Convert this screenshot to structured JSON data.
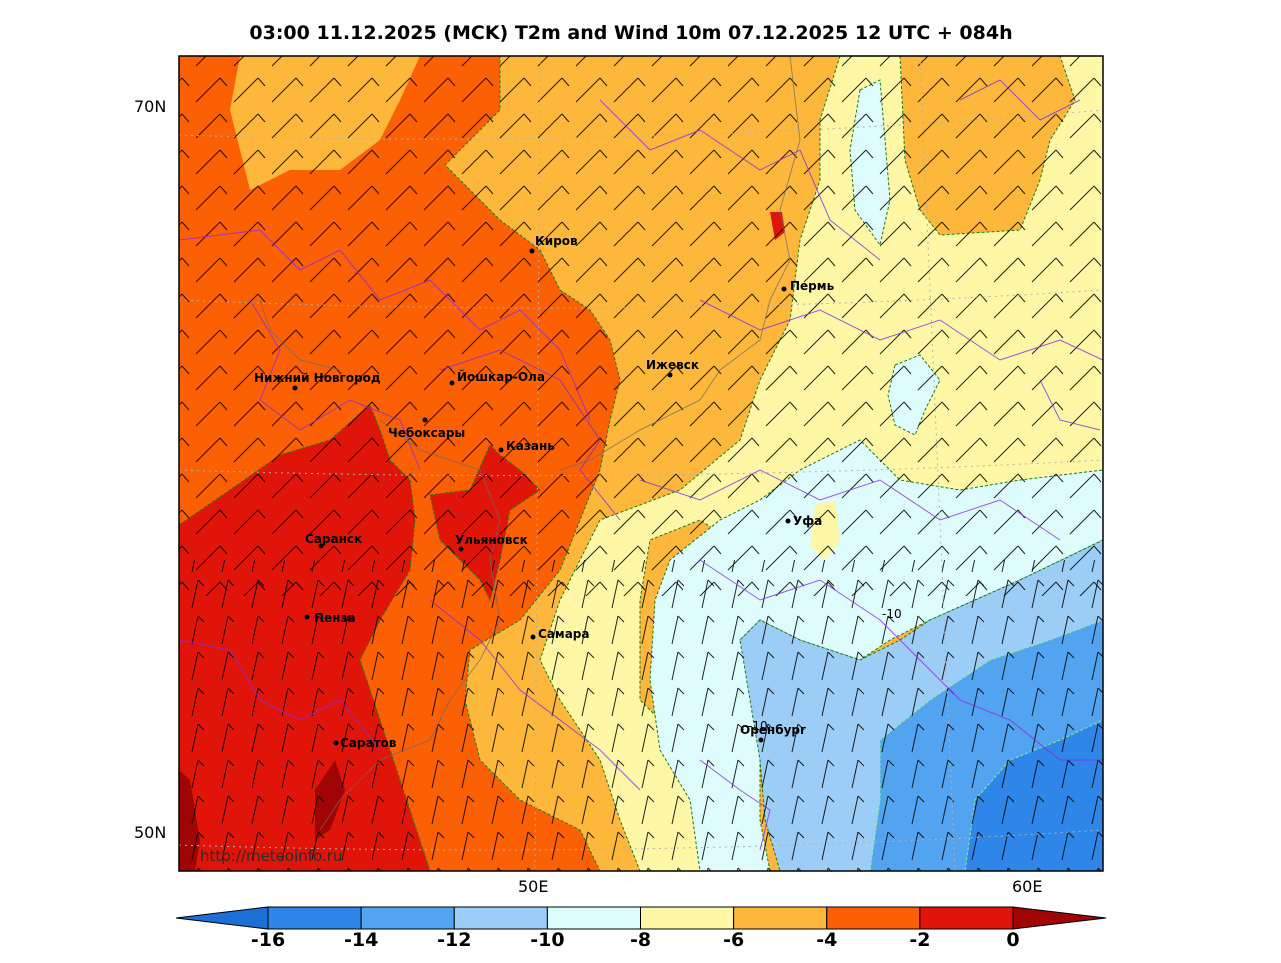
{
  "title": "03:00 11.12.2025 (MCK) T2m and Wind 10m 07.12.2025 12 UTC + 084h",
  "lat_labels": [
    "70N",
    "50N"
  ],
  "lon_labels": [
    "50E",
    "60E"
  ],
  "cities": [
    "Киров",
    "Пермь",
    "Нижний Новгород",
    "Йошкар-Ола",
    "Ижевск",
    "Чебоксары",
    "Казань",
    "Уфа",
    "Саранск",
    "Ульяновск",
    "Пенза",
    "Самара",
    "Оренбург",
    "Саратов"
  ],
  "contour_labels": [
    "-10",
    "-10"
  ],
  "watermark": "http://meteoinfo.ru",
  "colorbar": {
    "ticks": [
      "-16",
      "-14",
      "-12",
      "-10",
      "-8",
      "-6",
      "-4",
      "-2",
      "0"
    ],
    "colors": [
      "#1c6fd6",
      "#2e86e8",
      "#52a4f0",
      "#9ccdf6",
      "#defcfc",
      "#fdf7a6",
      "#fdb83c",
      "#fb6004",
      "#e01408",
      "#a00404"
    ]
  }
}
